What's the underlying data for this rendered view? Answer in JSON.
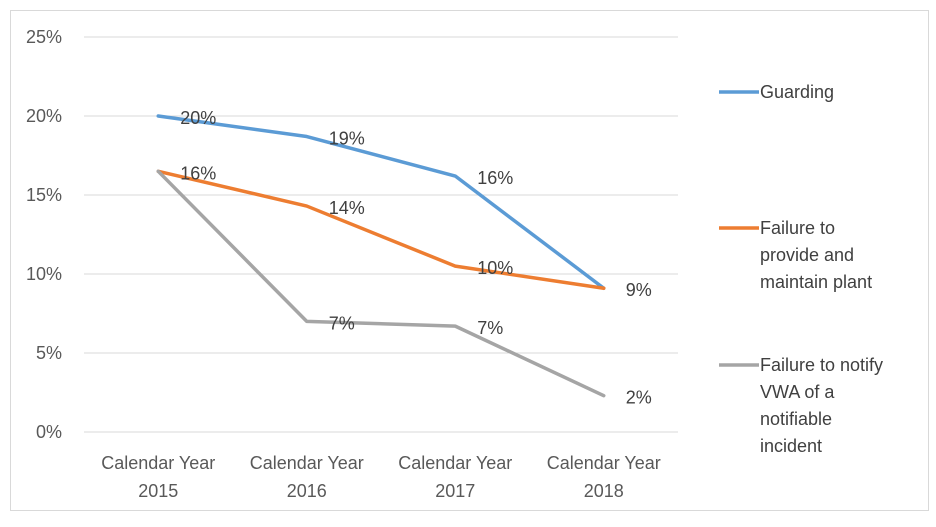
{
  "chart_data": {
    "type": "line",
    "categories": [
      [
        "Calendar Year",
        "2015"
      ],
      [
        "Calendar Year",
        "2016"
      ],
      [
        "Calendar Year",
        "2017"
      ],
      [
        "Calendar Year",
        "2018"
      ]
    ],
    "ylim": [
      0,
      25
    ],
    "yticks": [
      "0%",
      "5%",
      "10%",
      "15%",
      "20%",
      "25%"
    ],
    "grid": true,
    "legend_position": "right",
    "series": [
      {
        "name": "Guarding",
        "name_lines": [
          "Guarding"
        ],
        "color": "#5B9BD5",
        "values": [
          20,
          18.7,
          16.2,
          9.1
        ],
        "labels": [
          "20%",
          "19%",
          "16%",
          ""
        ]
      },
      {
        "name": "Failure to provide and maintain plant",
        "name_lines": [
          "Failure to",
          "provide and",
          "maintain plant"
        ],
        "color": "#ED7D31",
        "values": [
          16.5,
          14.3,
          10.5,
          9.1
        ],
        "labels": [
          "16%",
          "14%",
          "10%",
          "9%"
        ]
      },
      {
        "name": "Failure to notify VWA of a notifiable incident",
        "name_lines": [
          "Failure to notify",
          "VWA of a",
          "notifiable",
          "incident"
        ],
        "color": "#A5A5A5",
        "values": [
          16.5,
          7.0,
          6.7,
          2.3
        ],
        "labels": [
          "",
          "7%",
          "7%",
          "2%"
        ]
      }
    ]
  }
}
